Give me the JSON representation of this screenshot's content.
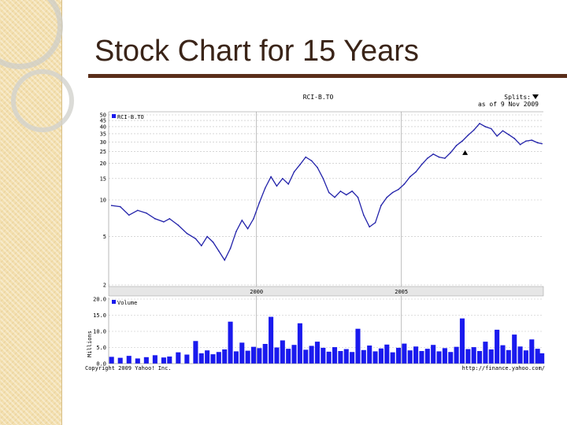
{
  "slide": {
    "title": "Stock Chart for 15 Years"
  },
  "chart_data": {
    "type": "line",
    "title": "RCI-B.TO",
    "splits_label": "Splits:",
    "as_of": "as of 9 Nov 2009",
    "legend_price": "RCI-B.TO",
    "legend_volume": "Volume",
    "volume_unit_label": "Millions",
    "copyright": "Copyright 2009 Yahoo! Inc.",
    "source_url": "http://finance.yahoo.com/",
    "x_tick_labels": [
      "2000",
      "2005"
    ],
    "x_ticks": [
      2000,
      2005
    ],
    "xlim": [
      1994.9,
      2009.9
    ],
    "price_ticks": [
      2,
      5,
      10,
      15,
      20,
      25,
      30,
      35,
      40,
      45,
      50
    ],
    "price_tick_labels": [
      "2",
      "5",
      "10",
      "15",
      "20",
      "25",
      "30",
      "35",
      "40",
      "45",
      "50"
    ],
    "ylim": [
      2,
      50
    ],
    "y_scale": "log",
    "volume_ticks": [
      0,
      5,
      10,
      15,
      20
    ],
    "volume_tick_labels": [
      "0.0",
      "5.0",
      "10.0",
      "15.0",
      "20.0"
    ],
    "volume_ylim": [
      0,
      20
    ],
    "split_marker": {
      "x": 2007.2,
      "y": 24.5
    },
    "colors": {
      "line": "#2222aa",
      "volume": "#1a1aee",
      "grid": "#c0c0c0",
      "band": "#e6e6e6"
    },
    "price_series": [
      [
        1995.0,
        9.0
      ],
      [
        1995.3,
        8.8
      ],
      [
        1995.6,
        7.5
      ],
      [
        1995.9,
        8.2
      ],
      [
        1996.2,
        7.8
      ],
      [
        1996.5,
        7.0
      ],
      [
        1996.8,
        6.6
      ],
      [
        1997.0,
        7.0
      ],
      [
        1997.3,
        6.2
      ],
      [
        1997.6,
        5.3
      ],
      [
        1997.9,
        4.8
      ],
      [
        1998.1,
        4.2
      ],
      [
        1998.3,
        5.0
      ],
      [
        1998.5,
        4.5
      ],
      [
        1998.7,
        3.8
      ],
      [
        1998.9,
        3.2
      ],
      [
        1999.1,
        4.0
      ],
      [
        1999.3,
        5.5
      ],
      [
        1999.5,
        6.8
      ],
      [
        1999.7,
        5.8
      ],
      [
        1999.9,
        7.0
      ],
      [
        2000.1,
        9.5
      ],
      [
        2000.3,
        12.5
      ],
      [
        2000.5,
        15.5
      ],
      [
        2000.7,
        13.0
      ],
      [
        2000.9,
        15.0
      ],
      [
        2001.1,
        13.5
      ],
      [
        2001.3,
        17.0
      ],
      [
        2001.5,
        19.5
      ],
      [
        2001.7,
        22.5
      ],
      [
        2001.9,
        21.0
      ],
      [
        2002.1,
        18.5
      ],
      [
        2002.3,
        15.0
      ],
      [
        2002.5,
        11.5
      ],
      [
        2002.7,
        10.5
      ],
      [
        2002.9,
        11.8
      ],
      [
        2003.1,
        11.0
      ],
      [
        2003.3,
        11.8
      ],
      [
        2003.5,
        10.5
      ],
      [
        2003.7,
        7.5
      ],
      [
        2003.9,
        6.0
      ],
      [
        2004.1,
        6.5
      ],
      [
        2004.3,
        9.0
      ],
      [
        2004.5,
        10.5
      ],
      [
        2004.7,
        11.5
      ],
      [
        2004.9,
        12.2
      ],
      [
        2005.1,
        13.5
      ],
      [
        2005.3,
        15.5
      ],
      [
        2005.5,
        17.0
      ],
      [
        2005.7,
        19.5
      ],
      [
        2005.9,
        22.0
      ],
      [
        2006.1,
        23.8
      ],
      [
        2006.3,
        22.5
      ],
      [
        2006.5,
        22.0
      ],
      [
        2006.7,
        24.5
      ],
      [
        2006.9,
        28.0
      ],
      [
        2007.1,
        30.5
      ],
      [
        2007.3,
        34.0
      ],
      [
        2007.5,
        37.5
      ],
      [
        2007.7,
        42.5
      ],
      [
        2007.9,
        40.0
      ],
      [
        2008.1,
        38.5
      ],
      [
        2008.3,
        33.5
      ],
      [
        2008.5,
        37.0
      ],
      [
        2008.7,
        34.5
      ],
      [
        2008.9,
        32.0
      ],
      [
        2009.1,
        28.5
      ],
      [
        2009.3,
        30.5
      ],
      [
        2009.5,
        31.0
      ],
      [
        2009.7,
        29.5
      ],
      [
        2009.85,
        29.0
      ]
    ],
    "volume_series": [
      [
        1995.0,
        2.1
      ],
      [
        1995.3,
        1.8
      ],
      [
        1995.6,
        2.4
      ],
      [
        1995.9,
        1.6
      ],
      [
        1996.2,
        2.0
      ],
      [
        1996.5,
        2.6
      ],
      [
        1996.8,
        1.9
      ],
      [
        1997.0,
        2.2
      ],
      [
        1997.3,
        3.5
      ],
      [
        1997.6,
        2.8
      ],
      [
        1997.9,
        7.0
      ],
      [
        1998.1,
        3.2
      ],
      [
        1998.3,
        4.1
      ],
      [
        1998.5,
        2.9
      ],
      [
        1998.7,
        3.6
      ],
      [
        1998.9,
        4.4
      ],
      [
        1999.1,
        13.0
      ],
      [
        1999.3,
        3.8
      ],
      [
        1999.5,
        6.5
      ],
      [
        1999.7,
        4.0
      ],
      [
        1999.9,
        5.2
      ],
      [
        2000.1,
        4.8
      ],
      [
        2000.3,
        6.1
      ],
      [
        2000.5,
        14.5
      ],
      [
        2000.7,
        5.0
      ],
      [
        2000.9,
        7.2
      ],
      [
        2001.1,
        4.6
      ],
      [
        2001.3,
        5.8
      ],
      [
        2001.5,
        12.5
      ],
      [
        2001.7,
        4.3
      ],
      [
        2001.9,
        5.5
      ],
      [
        2002.1,
        6.8
      ],
      [
        2002.3,
        4.9
      ],
      [
        2002.5,
        3.7
      ],
      [
        2002.7,
        5.1
      ],
      [
        2002.9,
        3.9
      ],
      [
        2003.1,
        4.5
      ],
      [
        2003.3,
        3.6
      ],
      [
        2003.5,
        10.8
      ],
      [
        2003.7,
        4.2
      ],
      [
        2003.9,
        5.6
      ],
      [
        2004.1,
        3.8
      ],
      [
        2004.3,
        4.7
      ],
      [
        2004.5,
        5.9
      ],
      [
        2004.7,
        3.5
      ],
      [
        2004.9,
        4.9
      ],
      [
        2005.1,
        6.2
      ],
      [
        2005.3,
        4.1
      ],
      [
        2005.5,
        5.3
      ],
      [
        2005.7,
        3.9
      ],
      [
        2005.9,
        4.6
      ],
      [
        2006.1,
        5.8
      ],
      [
        2006.3,
        3.8
      ],
      [
        2006.5,
        4.8
      ],
      [
        2006.7,
        3.6
      ],
      [
        2006.9,
        5.2
      ],
      [
        2007.1,
        14.0
      ],
      [
        2007.3,
        4.5
      ],
      [
        2007.5,
        5.1
      ],
      [
        2007.7,
        3.9
      ],
      [
        2007.9,
        6.8
      ],
      [
        2008.1,
        4.4
      ],
      [
        2008.3,
        10.5
      ],
      [
        2008.5,
        5.7
      ],
      [
        2008.7,
        4.2
      ],
      [
        2008.9,
        9.0
      ],
      [
        2009.1,
        5.3
      ],
      [
        2009.3,
        4.1
      ],
      [
        2009.5,
        7.5
      ],
      [
        2009.7,
        4.6
      ],
      [
        2009.85,
        3.2
      ]
    ]
  }
}
